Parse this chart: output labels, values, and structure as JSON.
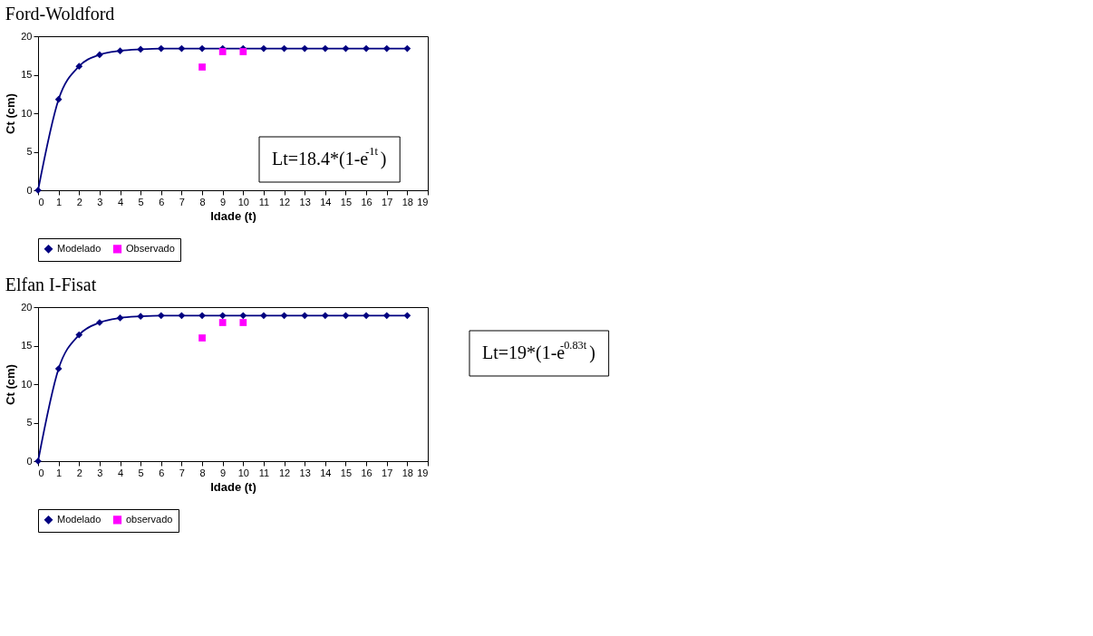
{
  "chart_data": [
    {
      "type": "line",
      "title": "Ford-Woldford",
      "xlabel": "Idade (t)",
      "ylabel": "Ct (cm)",
      "xlim": [
        0,
        19
      ],
      "xticks": [
        0,
        1,
        2,
        3,
        4,
        5,
        6,
        7,
        8,
        9,
        10,
        11,
        12,
        13,
        14,
        15,
        16,
        17,
        18,
        19
      ],
      "ylim": [
        0,
        20
      ],
      "yticks": [
        0,
        5,
        10,
        15,
        20
      ],
      "grid": false,
      "legend": "bottom",
      "annotations": [
        "Lt=18.4*(1-e$^{-1t}$)"
      ],
      "series": [
        {
          "name": "Modelado",
          "type": "line",
          "color": "#000080",
          "marker": "diamond",
          "x": [
            0,
            1,
            2,
            3,
            4,
            5,
            6,
            7,
            8,
            9,
            10,
            11,
            12,
            13,
            14,
            15,
            16,
            17,
            18
          ],
          "values": [
            0,
            11.8,
            16.1,
            17.6,
            18.1,
            18.3,
            18.4,
            18.4,
            18.4,
            18.4,
            18.4,
            18.4,
            18.4,
            18.4,
            18.4,
            18.4,
            18.4,
            18.4,
            18.4
          ]
        },
        {
          "name": "Observado",
          "type": "scatter",
          "color": "#ff00ff",
          "marker": "square",
          "x": [
            8,
            9,
            10
          ],
          "values": [
            16,
            18,
            18
          ]
        }
      ]
    },
    {
      "type": "line",
      "title": "Elfan I-Fisat",
      "xlabel": "Idade (t)",
      "ylabel": "Ct (cm)",
      "xlim": [
        0,
        19
      ],
      "xticks": [
        0,
        1,
        2,
        3,
        4,
        5,
        6,
        7,
        8,
        9,
        10,
        11,
        12,
        13,
        14,
        15,
        16,
        17,
        18,
        19
      ],
      "ylim": [
        0,
        20
      ],
      "yticks": [
        0,
        5,
        10,
        15,
        20
      ],
      "grid": false,
      "legend": "bottom",
      "annotations": [
        "Lt=19*(1-e$^{-0.83t}$)"
      ],
      "series": [
        {
          "name": "Modelado",
          "type": "line",
          "color": "#000080",
          "marker": "diamond",
          "x": [
            0,
            1,
            2,
            3,
            4,
            5,
            6,
            7,
            8,
            9,
            10,
            11,
            12,
            13,
            14,
            15,
            16,
            17,
            18
          ],
          "values": [
            0,
            12,
            16.4,
            18,
            18.6,
            18.8,
            18.9,
            18.9,
            18.9,
            18.9,
            18.9,
            18.9,
            18.9,
            18.9,
            18.9,
            18.9,
            18.9,
            18.9,
            18.9
          ]
        },
        {
          "name": "observado",
          "type": "scatter",
          "color": "#ff00ff",
          "marker": "square",
          "x": [
            8,
            9,
            10
          ],
          "values": [
            16,
            18,
            18
          ]
        }
      ]
    }
  ]
}
